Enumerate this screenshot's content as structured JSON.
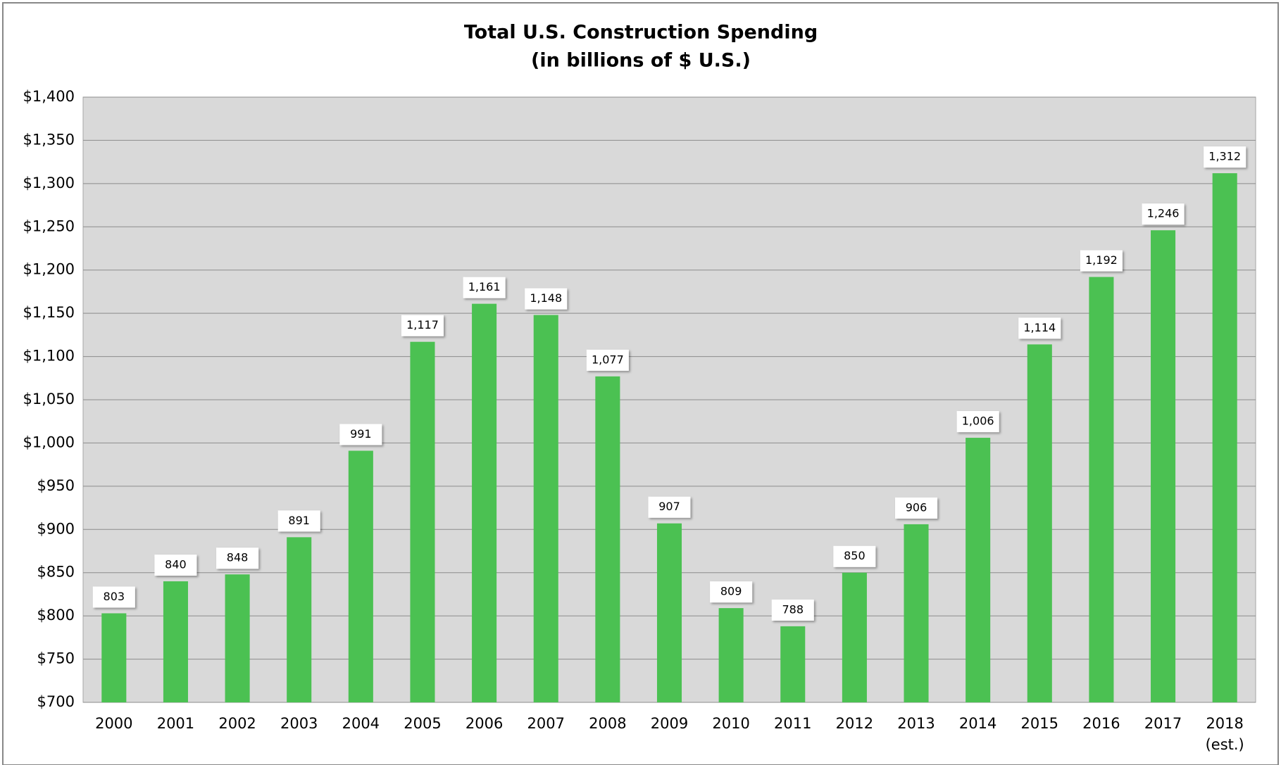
{
  "chart_data": {
    "type": "bar",
    "title": "Total U.S. Construction Spending",
    "subtitle": "(in billions of $ U.S.)",
    "categories": [
      "2000",
      "2001",
      "2002",
      "2003",
      "2004",
      "2005",
      "2006",
      "2007",
      "2008",
      "2009",
      "2010",
      "2011",
      "2012",
      "2013",
      "2014",
      "2015",
      "2016",
      "2017",
      "2018\n(est.)"
    ],
    "values": [
      803,
      840,
      848,
      891,
      991,
      1117,
      1161,
      1148,
      1077,
      907,
      809,
      788,
      850,
      906,
      1006,
      1114,
      1192,
      1246,
      1312
    ],
    "value_labels": [
      "803",
      "840",
      "848",
      "891",
      "991",
      "1,117",
      "1,161",
      "1,148",
      "1,077",
      "907",
      "809",
      "788",
      "850",
      "906",
      "1,006",
      "1,114",
      "1,192",
      "1,246",
      "1,312"
    ],
    "color": "#4bc152",
    "ylim": [
      700,
      1400
    ],
    "yticks": [
      {
        "value": 700,
        "label": "$700"
      },
      {
        "value": 750,
        "label": "$750"
      },
      {
        "value": 800,
        "label": "$800"
      },
      {
        "value": 850,
        "label": "$850"
      },
      {
        "value": 900,
        "label": "$900"
      },
      {
        "value": 950,
        "label": "$950"
      },
      {
        "value": 1000,
        "label": "$1,000"
      },
      {
        "value": 1050,
        "label": "$1,050"
      },
      {
        "value": 1100,
        "label": "$1,100"
      },
      {
        "value": 1150,
        "label": "$1,150"
      },
      {
        "value": 1200,
        "label": "$1,200"
      },
      {
        "value": 1250,
        "label": "$1,250"
      },
      {
        "value": 1300,
        "label": "$1,300"
      },
      {
        "value": 1350,
        "label": "$1,350"
      },
      {
        "value": 1400,
        "label": "$1,400"
      }
    ],
    "grid": true
  }
}
